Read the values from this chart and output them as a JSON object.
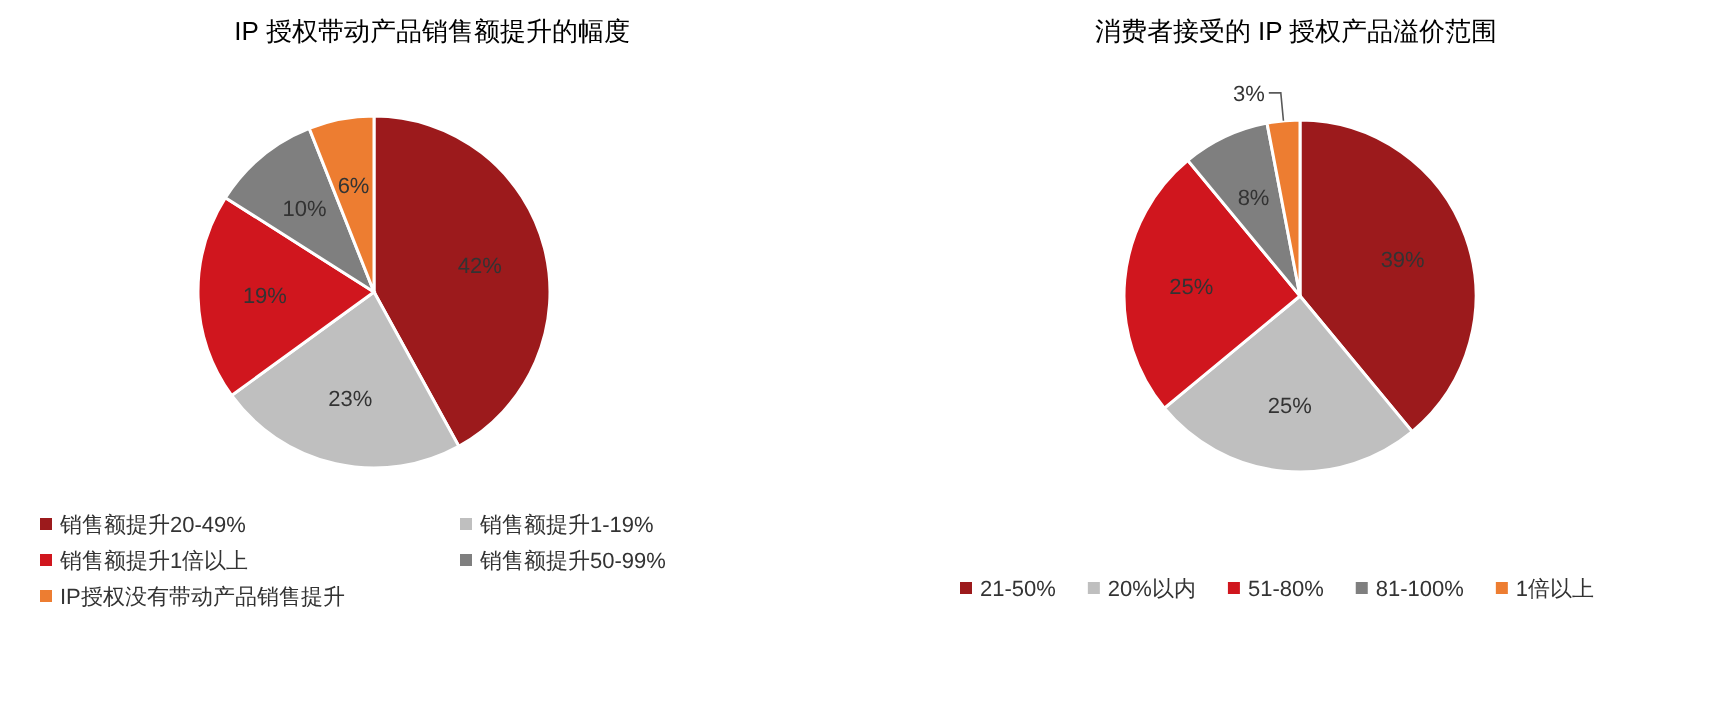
{
  "chart_data": [
    {
      "type": "pie",
      "title": "IP 授权带动产品销售额提升的幅度",
      "categories": [
        "销售额提升20-49%",
        "销售额提升1-19%",
        "销售额提升1倍以上",
        "销售额提升50-99%",
        "IP授权没有带动产品销售提升"
      ],
      "values": [
        42,
        23,
        19,
        10,
        6
      ],
      "colors": [
        "#9c1a1c",
        "#bfbfbf",
        "#d0161e",
        "#7f7f7f",
        "#ed7d31"
      ],
      "value_labels": [
        "42%",
        "23%",
        "19%",
        "10%",
        "6%"
      ],
      "legend": "bottom"
    },
    {
      "type": "pie",
      "title": "消费者接受的 IP 授权产品溢价范围",
      "categories": [
        "21-50%",
        "20%以内",
        "51-80%",
        "81-100%",
        "1倍以上"
      ],
      "values": [
        39,
        25,
        25,
        8,
        3
      ],
      "colors": [
        "#9c1a1c",
        "#bfbfbf",
        "#d0161e",
        "#7f7f7f",
        "#ed7d31"
      ],
      "value_labels": [
        "39%",
        "25%",
        "25%",
        "8%",
        "3%"
      ],
      "legend": "bottom"
    }
  ]
}
